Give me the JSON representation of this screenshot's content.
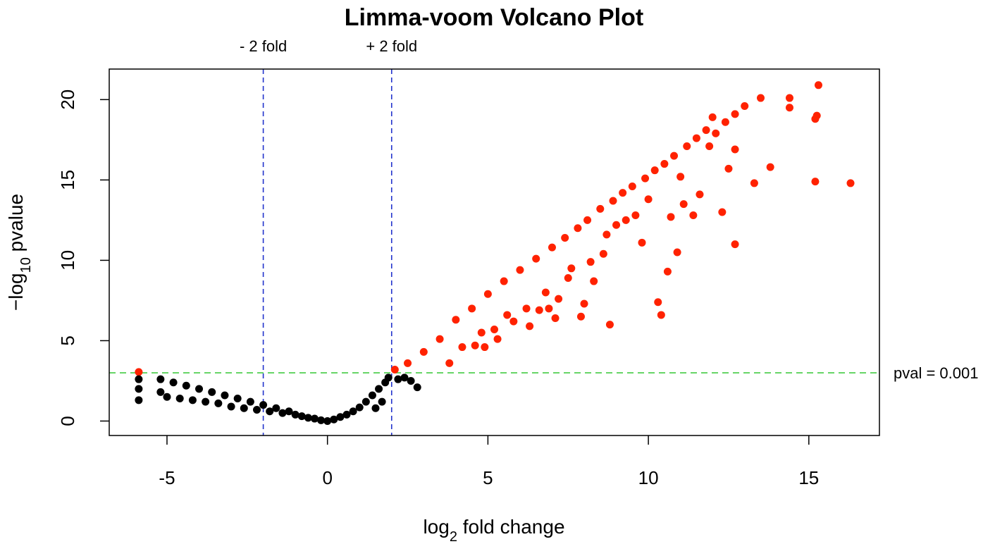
{
  "chart_data": {
    "type": "scatter",
    "title": "Limma-voom Volcano Plot",
    "xlabel": {
      "prefix": "log",
      "sub": "2",
      "suffix": " fold change"
    },
    "ylabel": {
      "prefix": "−log",
      "sub": "10",
      "suffix": " pvalue"
    },
    "xlim": [
      -6.8,
      17.2
    ],
    "ylim": [
      -0.9,
      21.9
    ],
    "x_ticks": [
      -5,
      0,
      5,
      10,
      15
    ],
    "y_ticks": [
      0,
      5,
      10,
      15,
      20
    ],
    "grid": false,
    "colors": {
      "significant": "#ff2200",
      "non_significant": "#000000",
      "fold_lines": "#2233cc",
      "pval_line": "#44cc44"
    },
    "reference_lines": {
      "fold_lines": [
        {
          "x": -2,
          "label": "- 2 fold"
        },
        {
          "x": 2,
          "label": "+ 2 fold"
        }
      ],
      "pval_line": {
        "y": 3,
        "label": "pval = 0.001"
      }
    },
    "series": [
      {
        "color": "#ff2200",
        "points": [
          [
            -5.88,
            3.05
          ],
          [
            2.1,
            3.2
          ],
          [
            2.5,
            3.6
          ],
          [
            3.0,
            4.3
          ],
          [
            3.5,
            5.1
          ],
          [
            3.8,
            3.6
          ],
          [
            4.0,
            6.3
          ],
          [
            4.2,
            4.6
          ],
          [
            4.5,
            7.0
          ],
          [
            4.6,
            4.7
          ],
          [
            4.8,
            5.5
          ],
          [
            4.9,
            4.6
          ],
          [
            5.0,
            7.9
          ],
          [
            5.2,
            5.7
          ],
          [
            5.3,
            5.1
          ],
          [
            5.5,
            8.7
          ],
          [
            5.6,
            6.6
          ],
          [
            5.8,
            6.2
          ],
          [
            6.0,
            9.4
          ],
          [
            6.2,
            7.0
          ],
          [
            6.3,
            5.9
          ],
          [
            6.5,
            10.1
          ],
          [
            6.6,
            6.9
          ],
          [
            6.8,
            8.0
          ],
          [
            6.9,
            7.0
          ],
          [
            7.0,
            10.8
          ],
          [
            7.1,
            6.4
          ],
          [
            7.2,
            7.6
          ],
          [
            7.4,
            11.4
          ],
          [
            7.5,
            8.9
          ],
          [
            7.6,
            9.5
          ],
          [
            7.8,
            12.0
          ],
          [
            7.9,
            6.5
          ],
          [
            8.0,
            7.3
          ],
          [
            8.1,
            12.5
          ],
          [
            8.2,
            9.9
          ],
          [
            8.3,
            8.7
          ],
          [
            8.5,
            13.2
          ],
          [
            8.6,
            10.4
          ],
          [
            8.7,
            11.6
          ],
          [
            8.8,
            6.0
          ],
          [
            8.9,
            13.7
          ],
          [
            9.0,
            12.2
          ],
          [
            9.2,
            14.2
          ],
          [
            9.3,
            12.5
          ],
          [
            9.5,
            14.6
          ],
          [
            9.6,
            12.8
          ],
          [
            9.8,
            11.1
          ],
          [
            9.9,
            15.1
          ],
          [
            10.0,
            13.8
          ],
          [
            10.2,
            15.6
          ],
          [
            10.3,
            7.4
          ],
          [
            10.4,
            6.6
          ],
          [
            10.5,
            16.0
          ],
          [
            10.6,
            9.3
          ],
          [
            10.7,
            12.7
          ],
          [
            10.8,
            16.5
          ],
          [
            10.9,
            10.5
          ],
          [
            11.0,
            15.2
          ],
          [
            11.1,
            13.5
          ],
          [
            11.2,
            17.1
          ],
          [
            11.4,
            12.8
          ],
          [
            11.5,
            17.6
          ],
          [
            11.6,
            14.1
          ],
          [
            11.8,
            18.1
          ],
          [
            11.9,
            17.1
          ],
          [
            12.0,
            18.9
          ],
          [
            12.1,
            17.9
          ],
          [
            12.3,
            13.0
          ],
          [
            12.4,
            18.6
          ],
          [
            12.5,
            15.7
          ],
          [
            12.7,
            19.1
          ],
          [
            12.7,
            16.9
          ],
          [
            12.7,
            11.0
          ],
          [
            13.0,
            19.6
          ],
          [
            13.3,
            14.8
          ],
          [
            13.5,
            20.1
          ],
          [
            13.8,
            15.8
          ],
          [
            14.4,
            20.1
          ],
          [
            14.4,
            19.5
          ],
          [
            15.2,
            18.8
          ],
          [
            15.25,
            19.0
          ],
          [
            15.2,
            14.9
          ],
          [
            15.3,
            20.9
          ],
          [
            16.3,
            14.8
          ]
        ]
      },
      {
        "color": "#000000",
        "points": [
          [
            -5.88,
            1.3
          ],
          [
            -5.88,
            2.0
          ],
          [
            -5.88,
            2.6
          ],
          [
            -5.2,
            1.8
          ],
          [
            -5.2,
            2.6
          ],
          [
            -5.0,
            1.5
          ],
          [
            -4.8,
            2.4
          ],
          [
            -4.6,
            1.4
          ],
          [
            -4.4,
            2.2
          ],
          [
            -4.2,
            1.3
          ],
          [
            -4.0,
            2.0
          ],
          [
            -3.8,
            1.2
          ],
          [
            -3.6,
            1.8
          ],
          [
            -3.4,
            1.1
          ],
          [
            -3.2,
            1.6
          ],
          [
            -3.0,
            0.9
          ],
          [
            -2.8,
            1.4
          ],
          [
            -2.6,
            0.8
          ],
          [
            -2.4,
            1.2
          ],
          [
            -2.2,
            0.7
          ],
          [
            -2.0,
            1.0
          ],
          [
            -1.8,
            0.6
          ],
          [
            -1.6,
            0.8
          ],
          [
            -1.4,
            0.5
          ],
          [
            -1.2,
            0.6
          ],
          [
            -1.0,
            0.4
          ],
          [
            -0.8,
            0.3
          ],
          [
            -0.6,
            0.2
          ],
          [
            -0.4,
            0.15
          ],
          [
            -0.2,
            0.05
          ],
          [
            0.0,
            0.0
          ],
          [
            0.2,
            0.1
          ],
          [
            0.4,
            0.25
          ],
          [
            0.6,
            0.4
          ],
          [
            0.8,
            0.6
          ],
          [
            1.0,
            0.85
          ],
          [
            1.2,
            1.2
          ],
          [
            1.4,
            1.6
          ],
          [
            1.6,
            2.0
          ],
          [
            1.8,
            2.4
          ],
          [
            1.9,
            2.7
          ],
          [
            1.7,
            1.2
          ],
          [
            1.5,
            0.8
          ],
          [
            2.2,
            2.6
          ],
          [
            2.4,
            2.7
          ],
          [
            2.6,
            2.5
          ],
          [
            2.8,
            2.1
          ]
        ]
      }
    ]
  }
}
